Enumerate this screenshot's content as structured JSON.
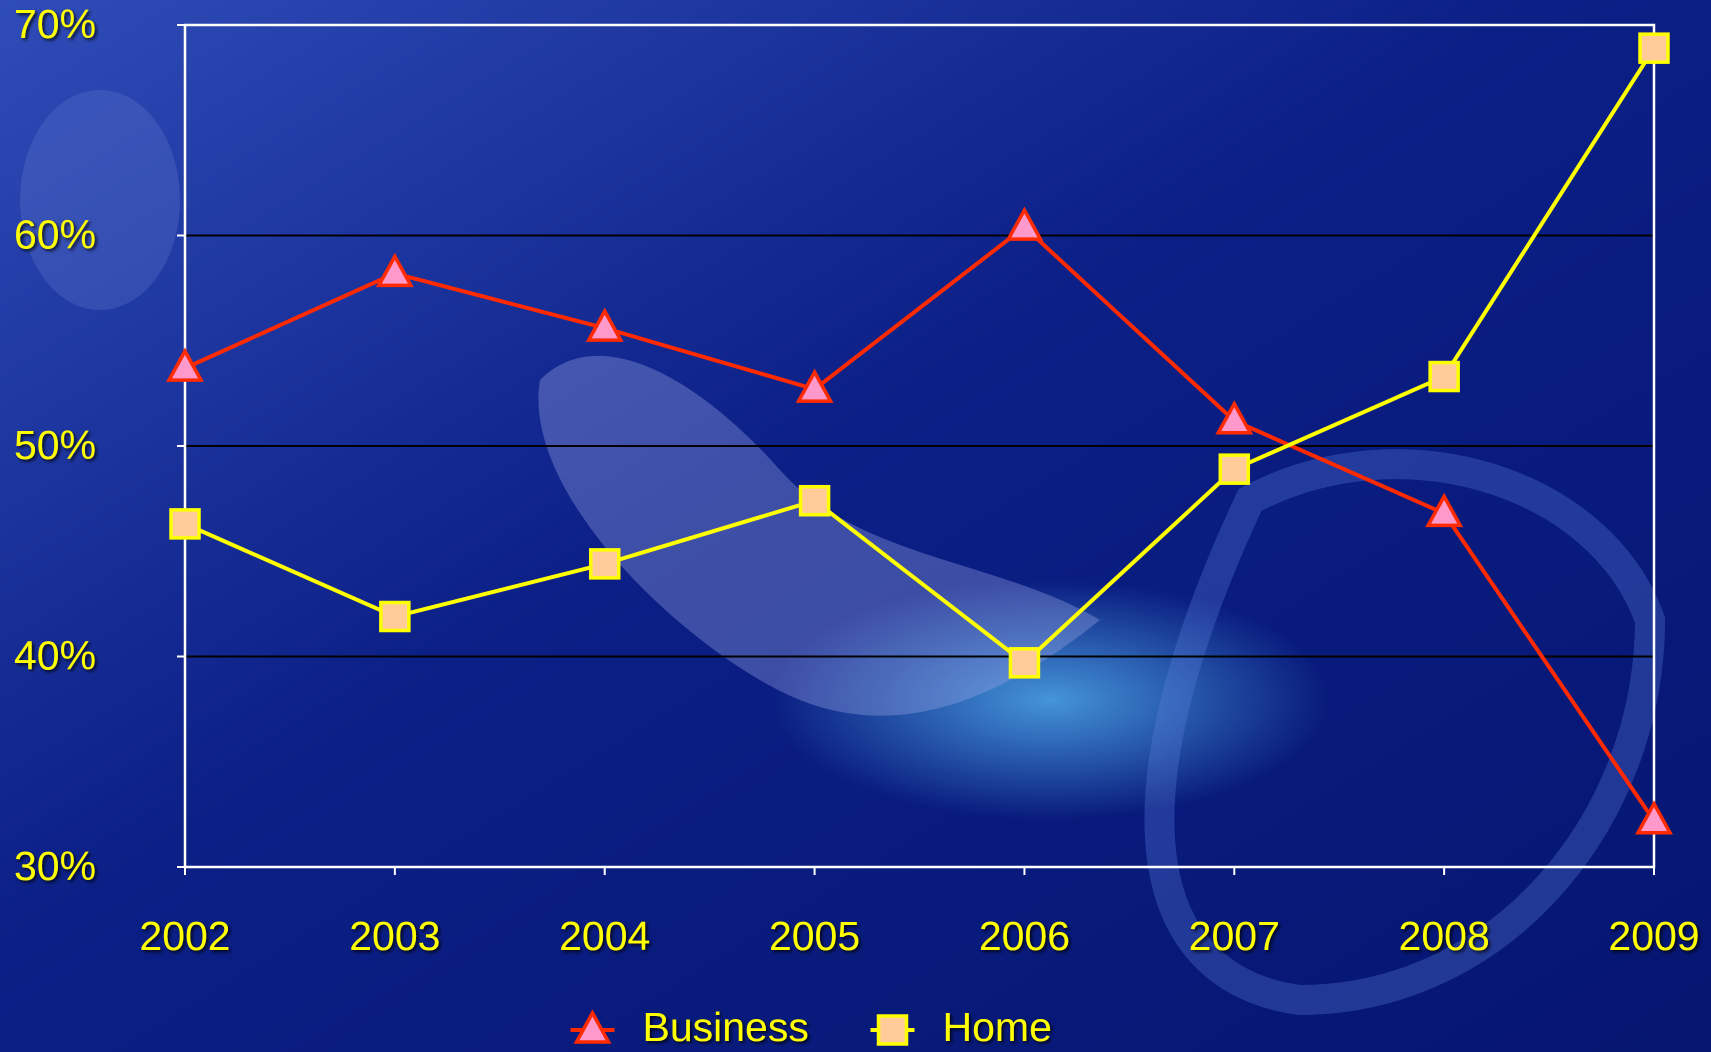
{
  "chart_data": {
    "type": "line",
    "categories": [
      "2002",
      "2003",
      "2004",
      "2005",
      "2006",
      "2007",
      "2008",
      "2009"
    ],
    "series": [
      {
        "name": "Business",
        "color": "#ff2a00",
        "marker": "triangle",
        "marker_fill": "#ff99cc",
        "values": [
          53.7,
          58.2,
          55.6,
          52.7,
          60.4,
          51.2,
          46.8,
          32.2
        ]
      },
      {
        "name": "Home",
        "color": "#ffff00",
        "marker": "square",
        "marker_fill": "#ffcc99",
        "values": [
          46.3,
          41.9,
          44.4,
          47.4,
          39.7,
          48.9,
          53.3,
          68.9
        ]
      }
    ],
    "ylim": [
      30,
      70
    ],
    "yticks": [
      {
        "value": 30,
        "label": "30%"
      },
      {
        "value": 40,
        "label": "40%"
      },
      {
        "value": 50,
        "label": "50%"
      },
      {
        "value": 60,
        "label": "60%"
      },
      {
        "value": 70,
        "label": "70%"
      }
    ],
    "grid": true,
    "legend": "bottom"
  }
}
